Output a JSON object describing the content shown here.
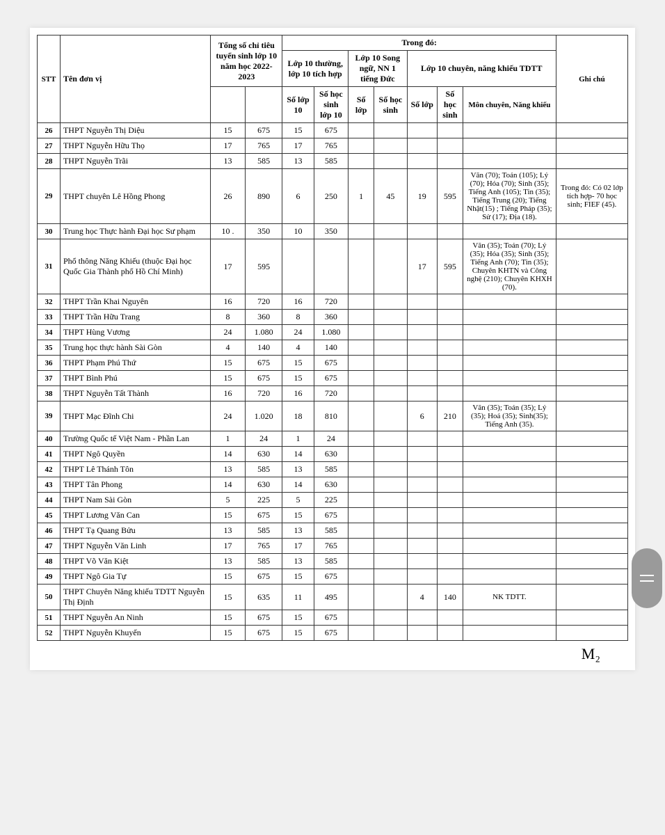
{
  "header": {
    "stt": "STT",
    "ten": "Tên đơn vị",
    "tong": "Tổng số chỉ tiêu tuyển sinh lớp 10 năm học 2022-2023",
    "trongdo": "Trong đó:",
    "thuong": "Lớp 10 thường, lớp 10 tích hợp",
    "songngu": "Lớp 10 Song ngữ, NN 1 tiếng Đức",
    "chuyen": "Lớp 10 chuyên, năng khiếu TDTT",
    "ghichu": "Ghi chú",
    "solop10": "Số lớp 10",
    "sohocsinh10": "Số học sinh lớp 10",
    "solop": "Số lớp",
    "sohocsinh": "Số học sinh",
    "mon": "Môn chuyên, Năng khiếu"
  },
  "rows": [
    {
      "stt": "26",
      "name": "THPT Nguyễn Thị Diệu",
      "tl": "15",
      "ts": "675",
      "l1": "15",
      "s1": "675",
      "l2": "",
      "s2": "",
      "l3": "",
      "s3": "",
      "mon": "",
      "ghi": ""
    },
    {
      "stt": "27",
      "name": "THPT Nguyễn Hữu Thọ",
      "tl": "17",
      "ts": "765",
      "l1": "17",
      "s1": "765",
      "l2": "",
      "s2": "",
      "l3": "",
      "s3": "",
      "mon": "",
      "ghi": ""
    },
    {
      "stt": "28",
      "name": "THPT Nguyễn Trãi",
      "tl": "13",
      "ts": "585",
      "l1": "13",
      "s1": "585",
      "l2": "",
      "s2": "",
      "l3": "",
      "s3": "",
      "mon": "",
      "ghi": ""
    },
    {
      "stt": "29",
      "name": "THPT chuyên Lê Hồng Phong",
      "tl": "26",
      "ts": "890",
      "l1": "6",
      "s1": "250",
      "l2": "1",
      "s2": "45",
      "l3": "19",
      "s3": "595",
      "mon": "Văn (70); Toán (105); Lý (70); Hóa (70); Sinh (35); Tiếng Anh (105); Tin (35); Tiếng Trung (20); Tiếng Nhật(15) ; Tiếng Pháp (35); Sử (17); Địa (18).",
      "ghi": "Trong đó: Có 02 lớp tích hợp- 70 học sinh; FIEF (45)."
    },
    {
      "stt": "30",
      "name": "Trung học Thực hành Đại học Sư phạm",
      "tl": "10 .",
      "ts": "350",
      "l1": "10",
      "s1": "350",
      "l2": "",
      "s2": "",
      "l3": "",
      "s3": "",
      "mon": "",
      "ghi": ""
    },
    {
      "stt": "31",
      "name": "Phổ thông Năng Khiếu (thuộc Đại học Quốc Gia Thành phố Hồ Chí Minh)",
      "tl": "17",
      "ts": "595",
      "l1": "",
      "s1": "",
      "l2": "",
      "s2": "",
      "l3": "17",
      "s3": "595",
      "mon": "Văn (35); Toán (70); Lý (35); Hóa (35); Sinh (35); Tiếng Anh (70); Tin (35); Chuyên KHTN và Công nghệ (210); Chuyên KHXH (70).",
      "ghi": ""
    },
    {
      "stt": "32",
      "name": "THPT Trần Khai Nguyên",
      "tl": "16",
      "ts": "720",
      "l1": "16",
      "s1": "720",
      "l2": "",
      "s2": "",
      "l3": "",
      "s3": "",
      "mon": "",
      "ghi": ""
    },
    {
      "stt": "33",
      "name": "THPT Trần Hữu Trang",
      "tl": "8",
      "ts": "360",
      "l1": "8",
      "s1": "360",
      "l2": "",
      "s2": "",
      "l3": "",
      "s3": "",
      "mon": "",
      "ghi": ""
    },
    {
      "stt": "34",
      "name": "THPT Hùng Vương",
      "tl": "24",
      "ts": "1.080",
      "l1": "24",
      "s1": "1.080",
      "l2": "",
      "s2": "",
      "l3": "",
      "s3": "",
      "mon": "",
      "ghi": ""
    },
    {
      "stt": "35",
      "name": "Trung học thực hành Sài Gòn",
      "tl": "4",
      "ts": "140",
      "l1": "4",
      "s1": "140",
      "l2": "",
      "s2": "",
      "l3": "",
      "s3": "",
      "mon": "",
      "ghi": ""
    },
    {
      "stt": "36",
      "name": "THPT Phạm Phú Thứ",
      "tl": "15",
      "ts": "675",
      "l1": "15",
      "s1": "675",
      "l2": "",
      "s2": "",
      "l3": "",
      "s3": "",
      "mon": "",
      "ghi": ""
    },
    {
      "stt": "37",
      "name": "THPT Bình Phú",
      "tl": "15",
      "ts": "675",
      "l1": "15",
      "s1": "675",
      "l2": "",
      "s2": "",
      "l3": "",
      "s3": "",
      "mon": "",
      "ghi": ""
    },
    {
      "stt": "38",
      "name": "THPT Nguyễn Tất Thành",
      "tl": "16",
      "ts": "720",
      "l1": "16",
      "s1": "720",
      "l2": "",
      "s2": "",
      "l3": "",
      "s3": "",
      "mon": "",
      "ghi": ""
    },
    {
      "stt": "39",
      "name": "THPT Mạc Đĩnh Chi",
      "tl": "24",
      "ts": "1.020",
      "l1": "18",
      "s1": "810",
      "l2": "",
      "s2": "",
      "l3": "6",
      "s3": "210",
      "mon": "Văn (35); Toán (35); Lý (35); Hoá (35); Sinh(35); Tiếng Anh (35).",
      "ghi": ""
    },
    {
      "stt": "40",
      "name": "Trường Quốc tế Việt Nam - Phần Lan",
      "tl": "1",
      "ts": "24",
      "l1": "1",
      "s1": "24",
      "l2": "",
      "s2": "",
      "l3": "",
      "s3": "",
      "mon": "",
      "ghi": ""
    },
    {
      "stt": "41",
      "name": "THPT Ngô Quyền",
      "tl": "14",
      "ts": "630",
      "l1": "14",
      "s1": "630",
      "l2": "",
      "s2": "",
      "l3": "",
      "s3": "",
      "mon": "",
      "ghi": ""
    },
    {
      "stt": "42",
      "name": "THPT Lê Thánh Tôn",
      "tl": "13",
      "ts": "585",
      "l1": "13",
      "s1": "585",
      "l2": "",
      "s2": "",
      "l3": "",
      "s3": "",
      "mon": "",
      "ghi": ""
    },
    {
      "stt": "43",
      "name": "THPT Tân Phong",
      "tl": "14",
      "ts": "630",
      "l1": "14",
      "s1": "630",
      "l2": "",
      "s2": "",
      "l3": "",
      "s3": "",
      "mon": "",
      "ghi": ""
    },
    {
      "stt": "44",
      "name": "THPT Nam Sài Gòn",
      "tl": "5",
      "ts": "225",
      "l1": "5",
      "s1": "225",
      "l2": "",
      "s2": "",
      "l3": "",
      "s3": "",
      "mon": "",
      "ghi": ""
    },
    {
      "stt": "45",
      "name": "THPT Lương Văn Can",
      "tl": "15",
      "ts": "675",
      "l1": "15",
      "s1": "675",
      "l2": "",
      "s2": "",
      "l3": "",
      "s3": "",
      "mon": "",
      "ghi": ""
    },
    {
      "stt": "46",
      "name": "THPT Tạ Quang Bửu",
      "tl": "13",
      "ts": "585",
      "l1": "13",
      "s1": "585",
      "l2": "",
      "s2": "",
      "l3": "",
      "s3": "",
      "mon": "",
      "ghi": ""
    },
    {
      "stt": "47",
      "name": "THPT Nguyễn Văn Linh",
      "tl": "17",
      "ts": "765",
      "l1": "17",
      "s1": "765",
      "l2": "",
      "s2": "",
      "l3": "",
      "s3": "",
      "mon": "",
      "ghi": ""
    },
    {
      "stt": "48",
      "name": "THPT Võ Văn Kiệt",
      "tl": "13",
      "ts": "585",
      "l1": "13",
      "s1": "585",
      "l2": "",
      "s2": "",
      "l3": "",
      "s3": "",
      "mon": "",
      "ghi": ""
    },
    {
      "stt": "49",
      "name": "THPT Ngô Gia Tự",
      "tl": "15",
      "ts": "675",
      "l1": "15",
      "s1": "675",
      "l2": "",
      "s2": "",
      "l3": "",
      "s3": "",
      "mon": "",
      "ghi": ""
    },
    {
      "stt": "50",
      "name": "THPT Chuyên Năng khiếu TDTT Nguyễn Thị Định",
      "tl": "15",
      "ts": "635",
      "l1": "11",
      "s1": "495",
      "l2": "",
      "s2": "",
      "l3": "4",
      "s3": "140",
      "mon": "NK TDTT.",
      "ghi": ""
    },
    {
      "stt": "51",
      "name": "THPT Nguyễn An Ninh",
      "tl": "15",
      "ts": "675",
      "l1": "15",
      "s1": "675",
      "l2": "",
      "s2": "",
      "l3": "",
      "s3": "",
      "mon": "",
      "ghi": ""
    },
    {
      "stt": "52",
      "name": "THPT Nguyễn Khuyến",
      "tl": "15",
      "ts": "675",
      "l1": "15",
      "s1": "675",
      "l2": "",
      "s2": "",
      "l3": "",
      "s3": "",
      "mon": "",
      "ghi": ""
    }
  ],
  "signature": "M₂"
}
